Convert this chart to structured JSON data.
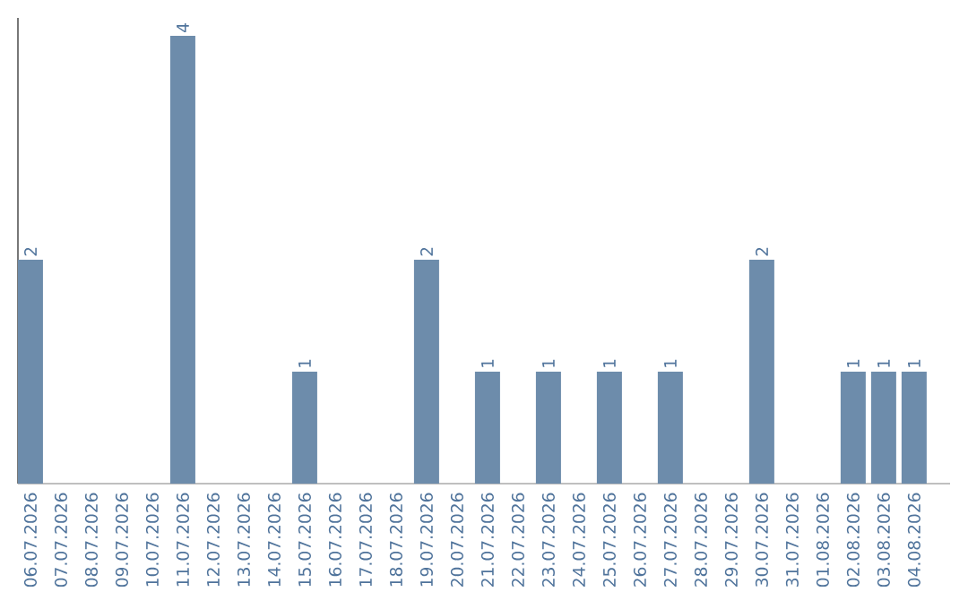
{
  "chart_data": {
    "type": "bar",
    "categories": [
      "06.07.2026",
      "07.07.2026",
      "08.07.2026",
      "09.07.2026",
      "10.07.2026",
      "11.07.2026",
      "12.07.2026",
      "13.07.2026",
      "14.07.2026",
      "15.07.2026",
      "16.07.2026",
      "17.07.2026",
      "18.07.2026",
      "19.07.2026",
      "20.07.2026",
      "21.07.2026",
      "22.07.2026",
      "23.07.2026",
      "24.07.2026",
      "25.07.2026",
      "26.07.2026",
      "27.07.2026",
      "28.07.2026",
      "29.07.2026",
      "30.07.2026",
      "31.07.2026",
      "01.08.2026",
      "02.08.2026",
      "03.08.2026",
      "04.08.2026"
    ],
    "values": [
      2,
      0,
      0,
      0,
      0,
      4,
      0,
      0,
      0,
      1,
      0,
      0,
      0,
      2,
      0,
      1,
      0,
      1,
      0,
      1,
      0,
      1,
      0,
      0,
      2,
      0,
      0,
      1,
      1,
      1
    ],
    "value_labels": [
      "2",
      null,
      null,
      null,
      null,
      "4",
      null,
      null,
      null,
      "1",
      null,
      null,
      null,
      "2",
      null,
      "1",
      null,
      "1",
      null,
      "1",
      null,
      "1",
      null,
      null,
      "2",
      null,
      null,
      "1",
      "1",
      "1"
    ],
    "color": "#6d8cab"
  }
}
